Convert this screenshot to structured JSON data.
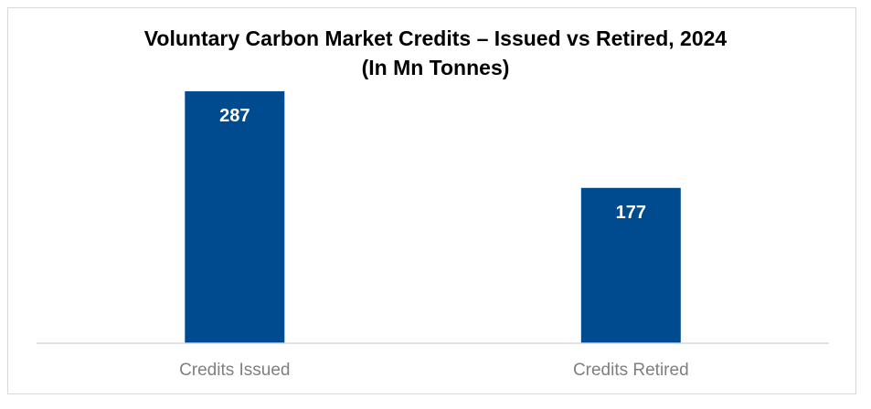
{
  "chart_data": {
    "type": "bar",
    "title": "Voluntary Carbon Market Credits – Issued vs Retired, 2024",
    "subtitle": "(In Mn Tonnes)",
    "categories": [
      "Credits Issued",
      "Credits Retired"
    ],
    "values": [
      287,
      177
    ],
    "data_labels": [
      "287",
      "177"
    ],
    "xlabel": "",
    "ylabel": "",
    "ylim": [
      0,
      287
    ],
    "grid": false,
    "legend": "none",
    "bar_color": "#004A8F",
    "axis_color": "#d9d9d9"
  }
}
